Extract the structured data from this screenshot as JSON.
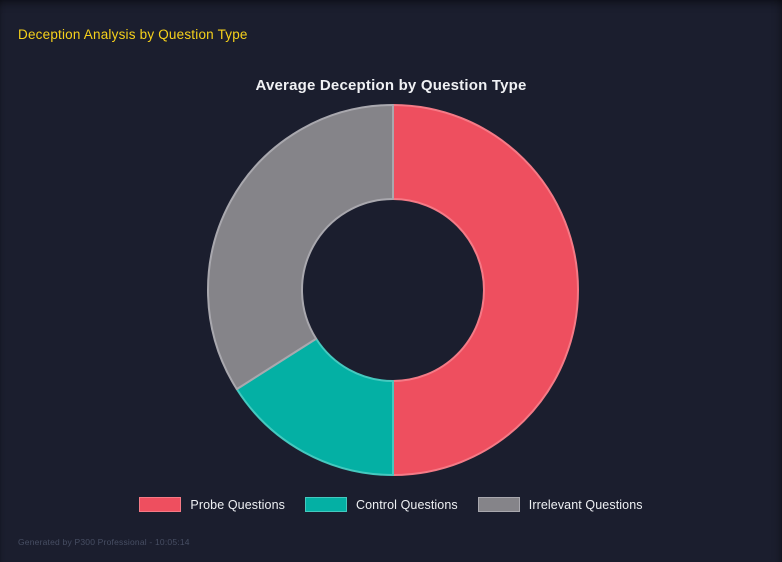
{
  "page": {
    "title": "Deception Analysis by Question Type",
    "footer": "Generated by P300 Professional - 10:05:14"
  },
  "colors": {
    "background": "#1b1e2e",
    "page_title": "#f6d11b",
    "chart_title": "#f0f1f4",
    "legend_text": "#eef0f3",
    "footer_text": "#474e63"
  },
  "chart_data": {
    "type": "pie",
    "subtype": "doughnut",
    "title": "Average Deception by Question Type",
    "categories": [
      "Probe Questions",
      "Control Questions",
      "Irrelevant Questions"
    ],
    "values": [
      50,
      16,
      34
    ],
    "values_note": "percent share of ring, estimated from arc angles (180deg, 57.6deg, 122.4deg)",
    "series_colors": [
      "#ee4f5f",
      "#04b0a4",
      "#858489"
    ],
    "border_colors": [
      "#f57a86",
      "#45c9bf",
      "#a9a8ae"
    ],
    "legend_position": "bottom",
    "cutout_ratio": 0.49,
    "start_angle_deg": 0,
    "clockwise": true
  }
}
